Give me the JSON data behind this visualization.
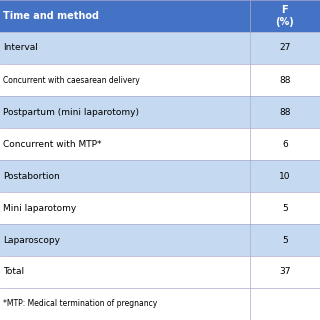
{
  "title": "",
  "header_col1": "Time and method",
  "header_col2": "F\n(%)",
  "header_bg": "#4472c4",
  "header_text_color": "#ffffff",
  "row_bg_odd": "#dce6f1",
  "row_bg_even": "#ffffff",
  "rows": [
    [
      "Interval",
      "27"
    ],
    [
      "Concurrent with caesarean delivery",
      "88"
    ],
    [
      "Postpartum (mini laparotomy)",
      "88"
    ],
    [
      "Concurrent with MTP*",
      "6"
    ],
    [
      "Postabortion",
      "10"
    ],
    [
      "Mini laparotomy",
      "5"
    ],
    [
      "Laparoscopy",
      "5"
    ],
    [
      "Total",
      "37"
    ],
    [
      "*MTP: Medical termination of pregnancy",
      ""
    ]
  ],
  "row_colors": [
    "#c5d9f1",
    "#ffffff",
    "#c5d9f1",
    "#ffffff",
    "#c5d9f1",
    "#ffffff",
    "#c5d9f1",
    "#ffffff",
    "#ffffff"
  ],
  "figsize": [
    3.2,
    3.2
  ],
  "dpi": 100
}
